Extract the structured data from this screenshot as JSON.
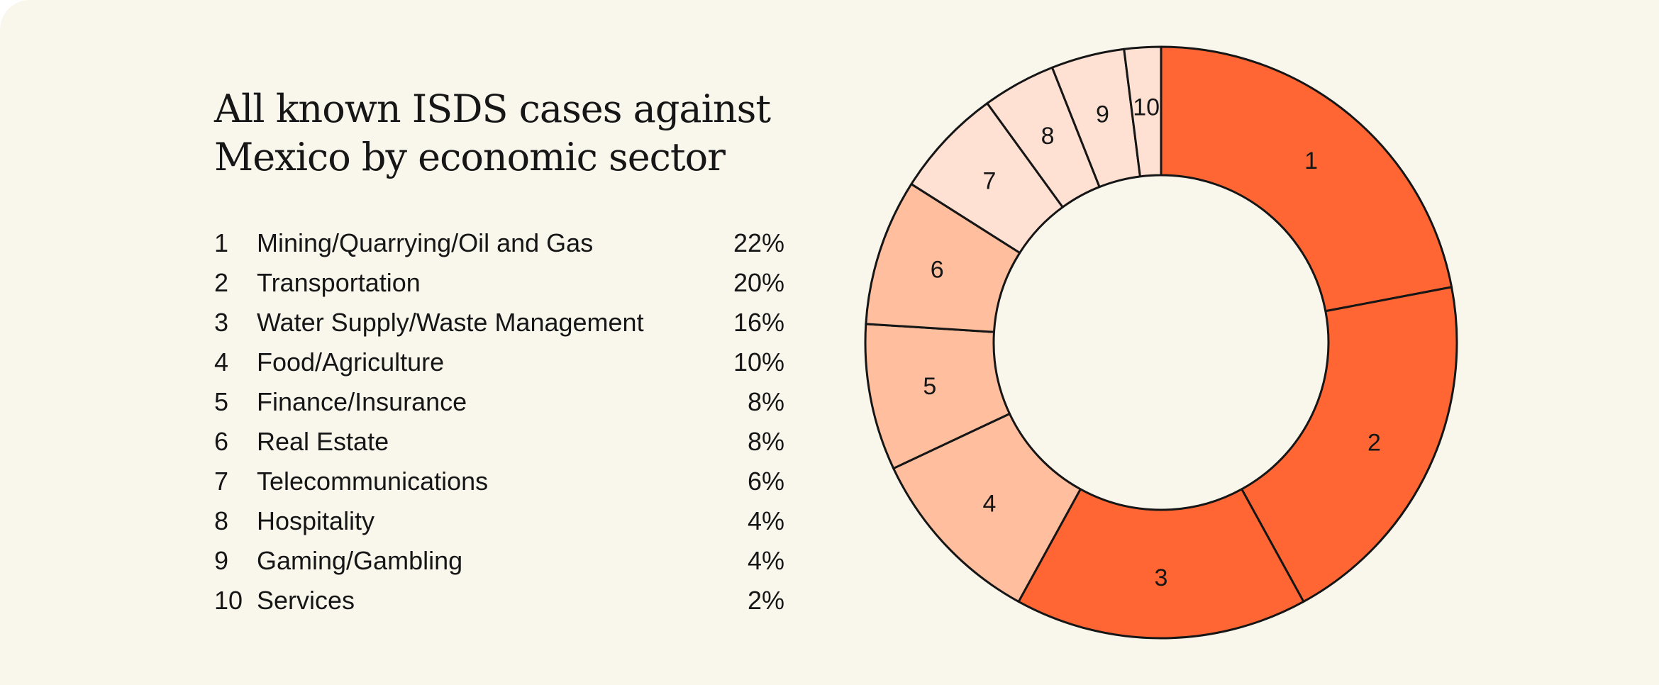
{
  "title": {
    "line1": "All known ISDS cases against",
    "line2": "Mexico by economic sector"
  },
  "colors": {
    "background": "#f9f6ec",
    "strong": "#ff6633",
    "medium": "#ffbe9e",
    "light": "#ffe1d4",
    "outline": "#161616"
  },
  "chart_data": {
    "type": "pie",
    "title": "All known ISDS cases against Mexico by economic sector",
    "categories": [
      "Mining/Quarrying/Oil and Gas",
      "Transportation",
      "Water Supply/Waste Management",
      "Food/Agriculture",
      "Finance/Insurance",
      "Real Estate",
      "Telecommunications",
      "Hospitality",
      "Gaming/Gambling",
      "Services"
    ],
    "slice_numbers": [
      "1",
      "2",
      "3",
      "4",
      "5",
      "6",
      "7",
      "8",
      "9",
      "10"
    ],
    "values": [
      22,
      20,
      16,
      10,
      8,
      8,
      6,
      4,
      4,
      2
    ],
    "value_labels": [
      "22%",
      "20%",
      "16%",
      "10%",
      "8%",
      "8%",
      "6%",
      "4%",
      "4%",
      "2%"
    ],
    "slice_tone": [
      "strong",
      "strong",
      "strong",
      "medium",
      "medium",
      "medium",
      "light",
      "light",
      "light",
      "light"
    ],
    "donut": true,
    "direction": "clockwise",
    "start_angle": "top",
    "legend_position": "left"
  }
}
